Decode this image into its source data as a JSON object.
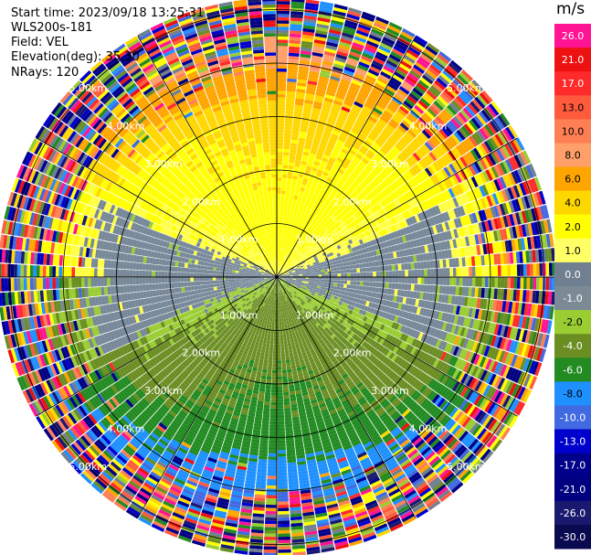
{
  "header": {
    "start_time": "Start time: 2023/09/18 13:25:31",
    "instrument": "WLS200s-181",
    "field": "Field: VEL",
    "elevation": "Elevation(deg): 35.30",
    "nrays": "NRays: 120"
  },
  "range_rings": {
    "labels": [
      "1.00km",
      "2.00km",
      "3.00km",
      "4.00km",
      "5.00km"
    ]
  },
  "colorbar": {
    "unit": "m/s",
    "ticks": [
      "26.0",
      "21.0",
      "17.0",
      "13.0",
      "10.0",
      "8.0",
      "6.0",
      "4.0",
      "2.0",
      "1.0",
      "0.0",
      "-1.0",
      "-2.0",
      "-4.0",
      "-6.0",
      "-8.0",
      "-10.0",
      "-13.0",
      "-17.0",
      "-21.0",
      "-26.0",
      "-30.0"
    ],
    "colors": [
      "#ff1493",
      "#ee1111",
      "#ff2a2a",
      "#ff5a3c",
      "#ff7f55",
      "#ff9f6a",
      "#ffa500",
      "#ffd700",
      "#ffff00",
      "#ffff66",
      "#708090",
      "#7c8a96",
      "#9acd32",
      "#6b8e23",
      "#228b22",
      "#1e90ff",
      "#4169e1",
      "#0000cd",
      "#00008b",
      "#000080",
      "#191970",
      "#0a0a50"
    ]
  },
  "chart_data": {
    "type": "heatmap",
    "title": "",
    "field": "VEL",
    "units": "m/s",
    "nrays": 120,
    "elevation_deg": 35.3,
    "start_time": "2023/09/18 13:25:31",
    "range_rings_km": [
      1.0,
      2.0,
      3.0,
      4.0,
      5.0
    ],
    "max_range_km": 5.2,
    "colorbar_range": [
      -30.0,
      26.0
    ],
    "description_of_pattern": {
      "north_half_inner": "positive velocities 1 to 6 m/s (yellow/orange)",
      "south_half_inner": "negative velocities -1 to -6 m/s (olive/green)",
      "east_west_band": "near zero (grey)",
      "beyond_4km": "noisy random values across full scale"
    }
  }
}
